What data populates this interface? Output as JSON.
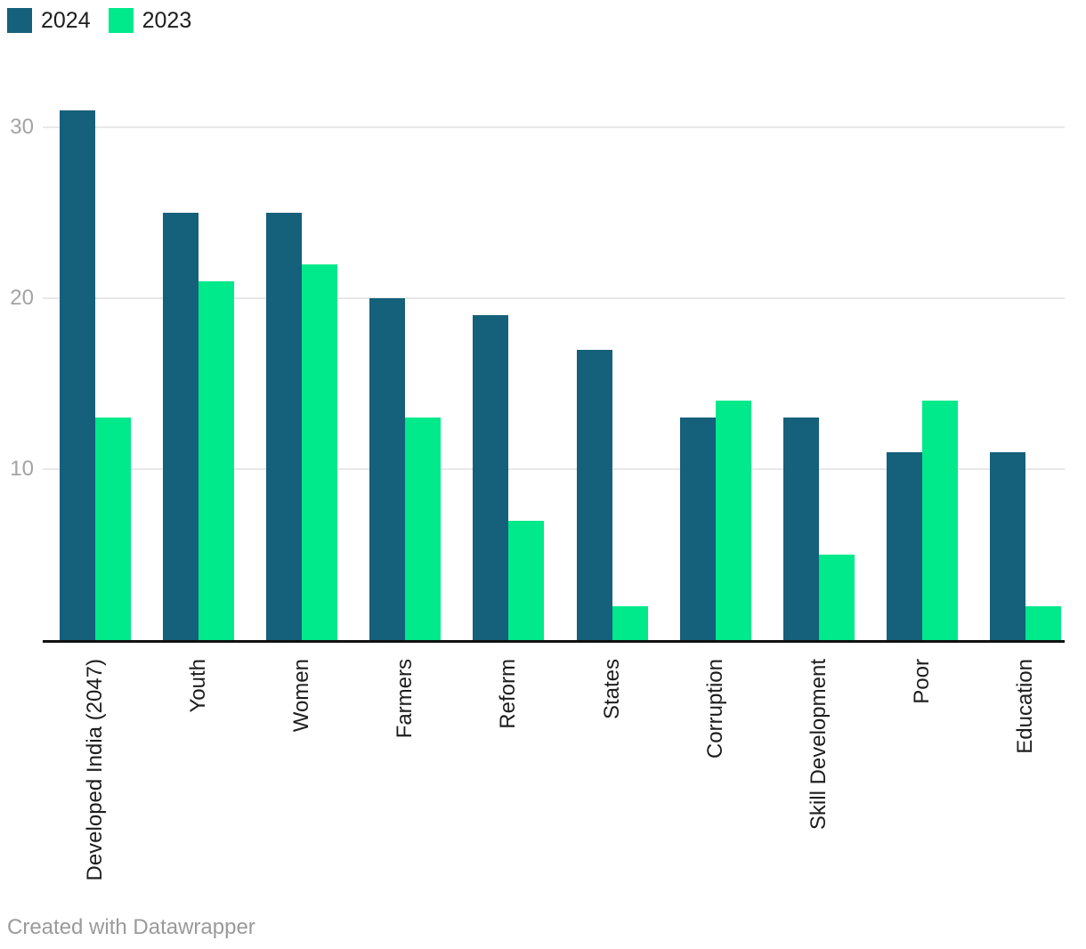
{
  "chart_data": {
    "type": "bar",
    "title": "",
    "categories": [
      "Developed India (2047)",
      "Youth",
      "Women",
      "Farmers",
      "Reform",
      "States",
      "Corruption",
      "Skill Development",
      "Poor",
      "Education"
    ],
    "series": [
      {
        "name": "2024",
        "color": "#15607a",
        "values": [
          31,
          25,
          25,
          20,
          19,
          17,
          13,
          13,
          11,
          11
        ]
      },
      {
        "name": "2023",
        "color": "#00e98a",
        "values": [
          13,
          21,
          22,
          13,
          7,
          2,
          14,
          5,
          14,
          2
        ]
      }
    ],
    "y_ticks": [
      10,
      20,
      30
    ],
    "ylim": [
      0,
      32
    ],
    "grid": "horizontal",
    "gridline_color": "#e8e8e8",
    "axis_line_color": "#111111",
    "tick_label_color": "#a3a3a3",
    "category_label_color": "#1d1d1d",
    "legend_position": "top-left",
    "x_label_rotation": -90
  },
  "footer": {
    "attribution": "Created with Datawrapper"
  }
}
